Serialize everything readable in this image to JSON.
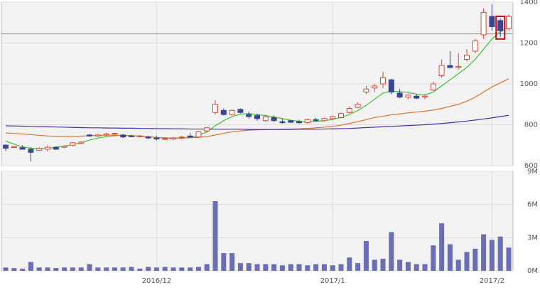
{
  "chart_data": [
    {
      "type": "candlestick",
      "categories": [
        null,
        null,
        null,
        null,
        null,
        null,
        null,
        null,
        null,
        null,
        null,
        null,
        null,
        null,
        null,
        null,
        null,
        null,
        "2016/12",
        null,
        null,
        null,
        null,
        null,
        null,
        null,
        null,
        null,
        null,
        null,
        null,
        null,
        null,
        null,
        null,
        null,
        null,
        null,
        null,
        "2017/1",
        null,
        null,
        null,
        null,
        null,
        null,
        null,
        null,
        null,
        null,
        null,
        null,
        null,
        null,
        null,
        null,
        null,
        null,
        "2017/2",
        null,
        null
      ],
      "open": [
        700,
        690,
        688,
        680,
        675,
        680,
        690,
        690,
        700,
        710,
        750,
        745,
        750,
        755,
        750,
        745,
        745,
        740,
        735,
        730,
        730,
        738,
        745,
        740,
        770,
        860,
        870,
        850,
        875,
        850,
        845,
        820,
        835,
        815,
        820,
        815,
        810,
        825,
        820,
        830,
        835,
        860,
        885,
        960,
        980,
        1000,
        1020,
        955,
        935,
        940,
        935,
        970,
        1040,
        1090,
        1080,
        1120,
        1160,
        1240,
        1330,
        1310,
        1270
      ],
      "high": [
        705,
        695,
        700,
        690,
        690,
        700,
        695,
        700,
        715,
        720,
        755,
        755,
        760,
        760,
        755,
        752,
        750,
        745,
        745,
        740,
        740,
        745,
        760,
        770,
        790,
        920,
        880,
        875,
        880,
        865,
        855,
        850,
        845,
        830,
        825,
        825,
        830,
        835,
        835,
        845,
        860,
        890,
        910,
        990,
        1000,
        1060,
        1025,
        975,
        950,
        950,
        950,
        1010,
        1120,
        1160,
        1150,
        1170,
        1220,
        1370,
        1390,
        1320,
        1340
      ],
      "low": [
        672,
        688,
        680,
        620,
        672,
        670,
        680,
        685,
        695,
        705,
        740,
        740,
        745,
        750,
        735,
        738,
        738,
        730,
        725,
        725,
        725,
        730,
        735,
        735,
        765,
        850,
        845,
        845,
        855,
        830,
        820,
        815,
        815,
        805,
        808,
        805,
        805,
        815,
        815,
        825,
        830,
        855,
        880,
        950,
        960,
        980,
        950,
        930,
        925,
        925,
        925,
        965,
        1030,
        1075,
        1070,
        1110,
        1150,
        1220,
        1260,
        1230,
        1260
      ],
      "close": [
        685,
        692,
        680,
        665,
        685,
        690,
        680,
        695,
        712,
        715,
        745,
        750,
        755,
        758,
        740,
        742,
        745,
        735,
        730,
        732,
        735,
        740,
        740,
        765,
        785,
        900,
        850,
        870,
        860,
        840,
        830,
        840,
        820,
        810,
        812,
        810,
        825,
        820,
        830,
        840,
        855,
        880,
        900,
        975,
        990,
        1030,
        960,
        935,
        945,
        930,
        940,
        1000,
        1090,
        1080,
        1085,
        1140,
        1210,
        1350,
        1280,
        1260,
        1330
      ],
      "up_color": "#d9473b",
      "down_color": "#3a4596",
      "series": [
        {
          "color": "#3fbf2f",
          "values": [
            720,
            705,
            692,
            685,
            682,
            684,
            690,
            695,
            703,
            712,
            725,
            735,
            742,
            746,
            748,
            747,
            745,
            742,
            738,
            735,
            733,
            734,
            738,
            748,
            765,
            795,
            820,
            840,
            852,
            855,
            850,
            845,
            838,
            830,
            822,
            817,
            815,
            816,
            820,
            826,
            836,
            850,
            870,
            895,
            925,
            955,
            965,
            962,
            958,
            950,
            945,
            960,
            990,
            1020,
            1050,
            1080,
            1120,
            1170,
            1220,
            1255,
            1280
          ]
        },
        {
          "color": "#d9752b",
          "values": [
            760,
            758,
            755,
            752,
            748,
            745,
            743,
            742,
            742,
            744,
            746,
            748,
            749,
            749,
            748,
            746,
            744,
            741,
            738,
            736,
            735,
            735,
            736,
            738,
            742,
            750,
            758,
            765,
            770,
            773,
            775,
            776,
            777,
            778,
            779,
            780,
            782,
            785,
            788,
            792,
            798,
            806,
            815,
            825,
            835,
            842,
            848,
            853,
            858,
            862,
            866,
            872,
            880,
            890,
            900,
            915,
            935,
            960,
            985,
            1005,
            1025
          ]
        },
        {
          "color": "#4b2fa8",
          "values": [
            795,
            794,
            793,
            792,
            791,
            790,
            789,
            788,
            787,
            786,
            785,
            785,
            784,
            784,
            783,
            783,
            782,
            782,
            781,
            781,
            780,
            780,
            779,
            779,
            779,
            778,
            778,
            778,
            778,
            777,
            777,
            777,
            777,
            777,
            777,
            778,
            778,
            778,
            779,
            780,
            781,
            782,
            784,
            786,
            788,
            790,
            792,
            794,
            796,
            798,
            800,
            803,
            806,
            810,
            814,
            818,
            823,
            828,
            834,
            840,
            846
          ]
        }
      ],
      "ref_line": 1245,
      "ref_color": "#e07070",
      "highlight_index": 59,
      "highlight_color": "#d01010",
      "ylim": [
        600,
        1400
      ],
      "yticks": [
        600,
        800,
        1000,
        1200,
        1400
      ],
      "grid": true
    },
    {
      "type": "bar",
      "categories": [
        null,
        null,
        null,
        null,
        null,
        null,
        null,
        null,
        null,
        null,
        null,
        null,
        null,
        null,
        null,
        null,
        null,
        null,
        "2016/12",
        null,
        null,
        null,
        null,
        null,
        null,
        null,
        null,
        null,
        null,
        null,
        null,
        null,
        null,
        null,
        null,
        null,
        null,
        null,
        null,
        "2017/1",
        null,
        null,
        null,
        null,
        null,
        null,
        null,
        null,
        null,
        null,
        null,
        null,
        null,
        null,
        null,
        null,
        null,
        null,
        "2017/2",
        null,
        null
      ],
      "values": [
        300000,
        250000,
        200000,
        800000,
        300000,
        300000,
        250000,
        300000,
        300000,
        300000,
        600000,
        300000,
        300000,
        300000,
        300000,
        350000,
        200000,
        350000,
        300000,
        350000,
        300000,
        300000,
        300000,
        350000,
        600000,
        6300000,
        1600000,
        1600000,
        700000,
        700000,
        600000,
        600000,
        600000,
        500000,
        600000,
        600000,
        500000,
        600000,
        600000,
        500000,
        600000,
        1200000,
        700000,
        2700000,
        1000000,
        1100000,
        3500000,
        1000000,
        800000,
        600000,
        600000,
        2300000,
        4300000,
        2400000,
        1000000,
        1700000,
        2000000,
        3300000,
        2800000,
        3100000,
        2100000
      ],
      "color": "#6a6fb5",
      "ylim": [
        0,
        9000000
      ],
      "yticks": [
        {
          "value": 0,
          "label": "0M"
        },
        {
          "value": 3000000,
          "label": "3M"
        },
        {
          "value": 6000000,
          "label": "6M"
        },
        {
          "value": 9000000,
          "label": "9M"
        }
      ],
      "grid": true
    }
  ]
}
